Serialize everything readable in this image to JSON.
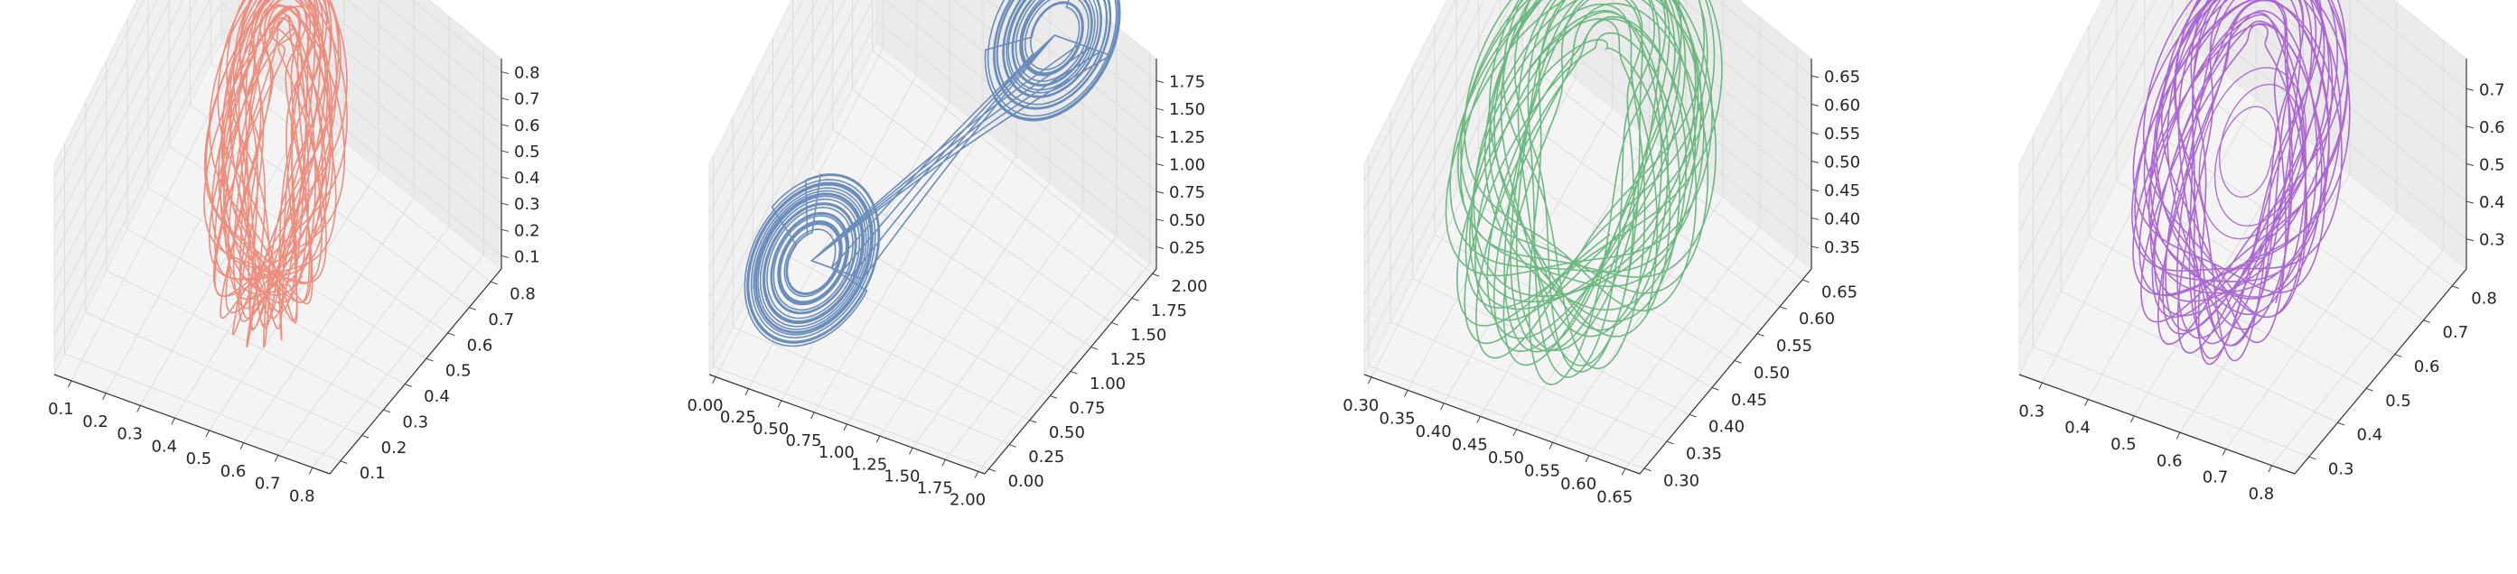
{
  "chart_data": [
    {
      "type": "line3d",
      "color": "#ec8372",
      "attractor": "torus",
      "x_ticks": [
        "0.1",
        "0.2",
        "0.3",
        "0.4",
        "0.5",
        "0.6",
        "0.7",
        "0.8"
      ],
      "y_ticks": [
        "0.1",
        "0.2",
        "0.3",
        "0.4",
        "0.5",
        "0.6",
        "0.7",
        "0.8"
      ],
      "z_ticks": [
        "0.1",
        "0.2",
        "0.3",
        "0.4",
        "0.5",
        "0.6",
        "0.7",
        "0.8"
      ],
      "x_range": [
        0.05,
        0.85
      ],
      "y_range": [
        0.05,
        0.85
      ],
      "z_range": [
        0.05,
        0.85
      ],
      "grid": true
    },
    {
      "type": "line3d",
      "color": "#5b82b6",
      "attractor": "double-scroll",
      "x_ticks": [
        "0.00",
        "0.25",
        "0.50",
        "0.75",
        "1.00",
        "1.25",
        "1.50",
        "1.75",
        "2.00"
      ],
      "y_ticks": [
        "0.00",
        "0.25",
        "0.50",
        "0.75",
        "1.00",
        "1.25",
        "1.50",
        "1.75",
        "2.00"
      ],
      "z_ticks": [
        "0.25",
        "0.50",
        "0.75",
        "1.00",
        "1.25",
        "1.50",
        "1.75"
      ],
      "x_range": [
        -0.05,
        2.05
      ],
      "y_range": [
        -0.05,
        2.05
      ],
      "z_range": [
        0.05,
        1.95
      ],
      "grid": true
    },
    {
      "type": "line3d",
      "color": "#5eb274",
      "attractor": "torus",
      "x_ticks": [
        "0.30",
        "0.35",
        "0.40",
        "0.45",
        "0.50",
        "0.55",
        "0.60",
        "0.65"
      ],
      "y_ticks": [
        "0.30",
        "0.35",
        "0.40",
        "0.45",
        "0.50",
        "0.55",
        "0.60",
        "0.65"
      ],
      "z_ticks": [
        "0.35",
        "0.40",
        "0.45",
        "0.50",
        "0.55",
        "0.60",
        "0.65"
      ],
      "x_range": [
        0.29,
        0.67
      ],
      "y_range": [
        0.29,
        0.67
      ],
      "z_range": [
        0.31,
        0.68
      ],
      "grid": true
    },
    {
      "type": "line3d",
      "color": "#a45acf",
      "attractor": "torus-with-inner-scroll",
      "x_ticks": [
        "0.3",
        "0.4",
        "0.5",
        "0.6",
        "0.7",
        "0.8"
      ],
      "y_ticks": [
        "0.3",
        "0.4",
        "0.5",
        "0.6",
        "0.7",
        "0.8"
      ],
      "z_ticks": [
        "0.3",
        "0.4",
        "0.5",
        "0.6",
        "0.7"
      ],
      "x_range": [
        0.25,
        0.85
      ],
      "y_range": [
        0.25,
        0.85
      ],
      "z_range": [
        0.22,
        0.78
      ],
      "grid": true
    }
  ]
}
